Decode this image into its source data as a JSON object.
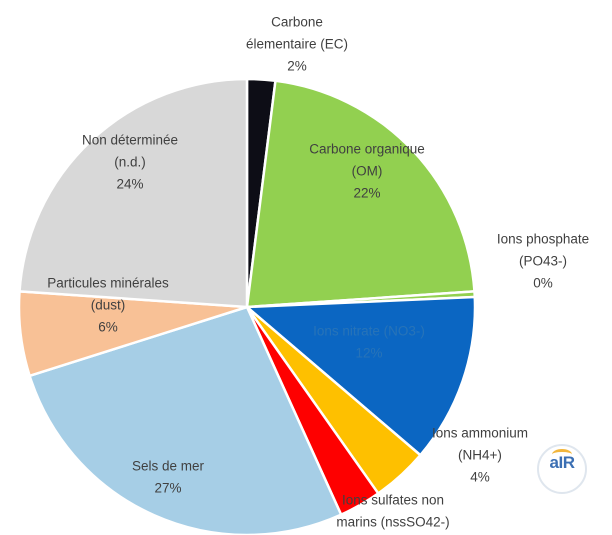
{
  "chart_data": {
    "type": "pie",
    "slices": [
      {
        "label": [
          "Carbone",
          "élementaire (EC)"
        ],
        "value": 2,
        "value_label": "2%",
        "color": "#0d0d16"
      },
      {
        "label": [
          "Carbone organique",
          "(OM)"
        ],
        "value": 22,
        "value_label": "22%",
        "color": "#92d050"
      },
      {
        "label": [
          "Ions phosphate",
          "(PO43-)"
        ],
        "value": 0.4,
        "value_label": "0%",
        "color": "#92d050"
      },
      {
        "label": [
          "Ions nitrate (NO3-)"
        ],
        "value": 12,
        "value_label": "12%",
        "color": "#0b66c2"
      },
      {
        "label": [
          "Ions ammonium",
          "(NH4+)"
        ],
        "value": 4,
        "value_label": "4%",
        "color": "#fec000"
      },
      {
        "label": [
          "Ions sulfates non",
          "marins (nssSO42-)"
        ],
        "value": 3,
        "value_label": "",
        "color": "#fe0000"
      },
      {
        "label": [
          "Sels de mer"
        ],
        "value": 27,
        "value_label": "27%",
        "color": "#a6cee6"
      },
      {
        "label": [
          "Particules minérales",
          "(dust)"
        ],
        "value": 6,
        "value_label": "6%",
        "color": "#f8c196"
      },
      {
        "label": [
          "Non déterminée",
          "(n.d.)"
        ],
        "value": 24,
        "value_label": "24%",
        "color": "#d8d8d8"
      }
    ]
  },
  "logo": {
    "text": "aIR",
    "name": "air-breizh-logo"
  }
}
